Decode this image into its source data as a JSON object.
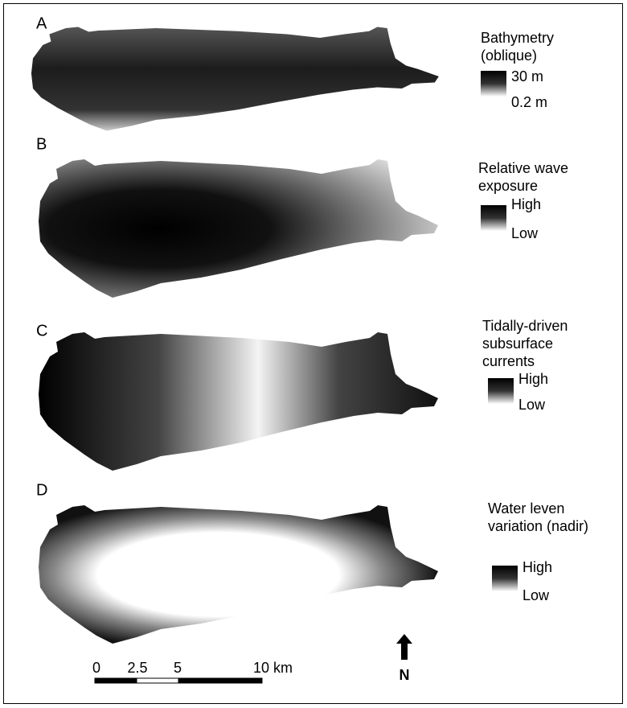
{
  "panels": [
    {
      "label": "A",
      "legend_title": [
        "Bathymetry",
        "(oblique)"
      ],
      "legend_high": "30 m",
      "legend_low": "0.2 m"
    },
    {
      "label": "B",
      "legend_title": [
        "Relative wave",
        "exposure"
      ],
      "legend_high": "High",
      "legend_low": "Low"
    },
    {
      "label": "C",
      "legend_title": [
        "Tidally-driven",
        "subsurface",
        "currents"
      ],
      "legend_high": "High",
      "legend_low": "Low"
    },
    {
      "label": "D",
      "legend_title": [
        "Water leven",
        "variation (nadir)"
      ],
      "legend_high": "High",
      "legend_low": "Low"
    }
  ],
  "scale_bar": {
    "labels": [
      "0",
      "2.5",
      "5",
      "10 km"
    ]
  },
  "north": "N"
}
